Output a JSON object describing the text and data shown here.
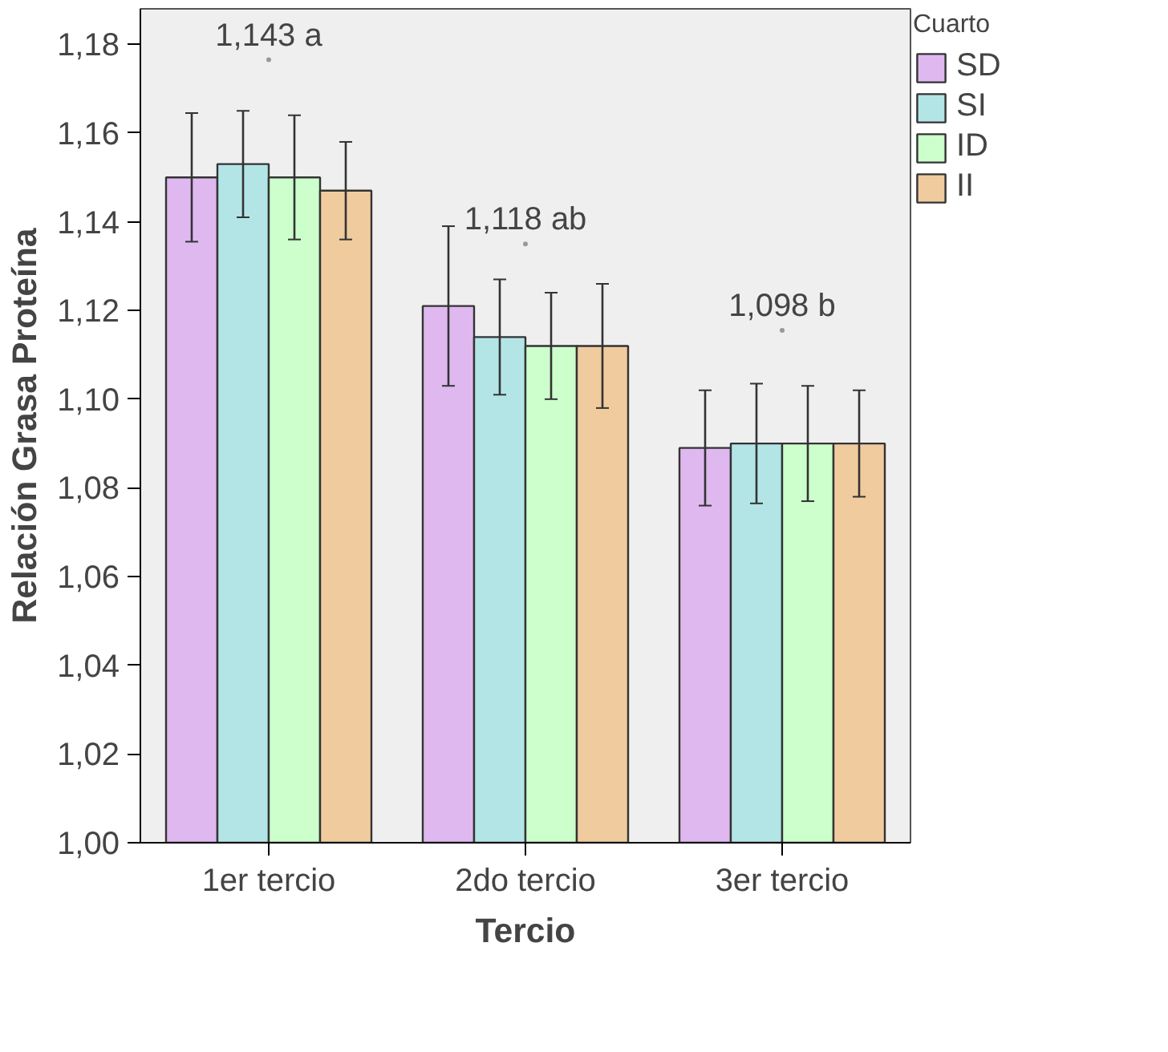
{
  "chart_data": {
    "type": "bar",
    "xlabel": "Tercio",
    "ylabel": "Relación Grasa Proteína",
    "legend_title": "Cuarto",
    "categories": [
      "1er tercio",
      "2do tercio",
      "3er tercio"
    ],
    "series": [
      {
        "name": "SD",
        "color": "#dfb8f0",
        "values": [
          1.15,
          1.121,
          1.089
        ],
        "errors": [
          0.0145,
          0.018,
          0.013
        ]
      },
      {
        "name": "SI",
        "color": "#b3e5e6",
        "values": [
          1.153,
          1.114,
          1.09
        ],
        "errors": [
          0.012,
          0.013,
          0.0135
        ]
      },
      {
        "name": "ID",
        "color": "#ccffcc",
        "values": [
          1.15,
          1.112,
          1.09
        ],
        "errors": [
          0.014,
          0.012,
          0.013
        ]
      },
      {
        "name": "II",
        "color": "#efcb9e",
        "values": [
          1.147,
          1.112,
          1.09
        ],
        "errors": [
          0.011,
          0.014,
          0.012
        ]
      }
    ],
    "ylim": [
      1.0,
      1.188
    ],
    "yticks": [
      {
        "value": 1.0,
        "label": "1,00"
      },
      {
        "value": 1.02,
        "label": "1,02"
      },
      {
        "value": 1.04,
        "label": "1,04"
      },
      {
        "value": 1.06,
        "label": "1,06"
      },
      {
        "value": 1.08,
        "label": "1,08"
      },
      {
        "value": 1.1,
        "label": "1,10"
      },
      {
        "value": 1.12,
        "label": "1,12"
      },
      {
        "value": 1.14,
        "label": "1,14"
      },
      {
        "value": 1.16,
        "label": "1,16"
      },
      {
        "value": 1.18,
        "label": "1,18"
      }
    ],
    "annotations": [
      {
        "text": "1,143 a",
        "x": "1er tercio",
        "y": 1.1765
      },
      {
        "text": "1,118 ab",
        "x": "2do tercio",
        "y": 1.135
      },
      {
        "text": "1,098 b",
        "x": "3er tercio",
        "y": 1.1155
      }
    ],
    "grid": false,
    "legend": "right"
  }
}
